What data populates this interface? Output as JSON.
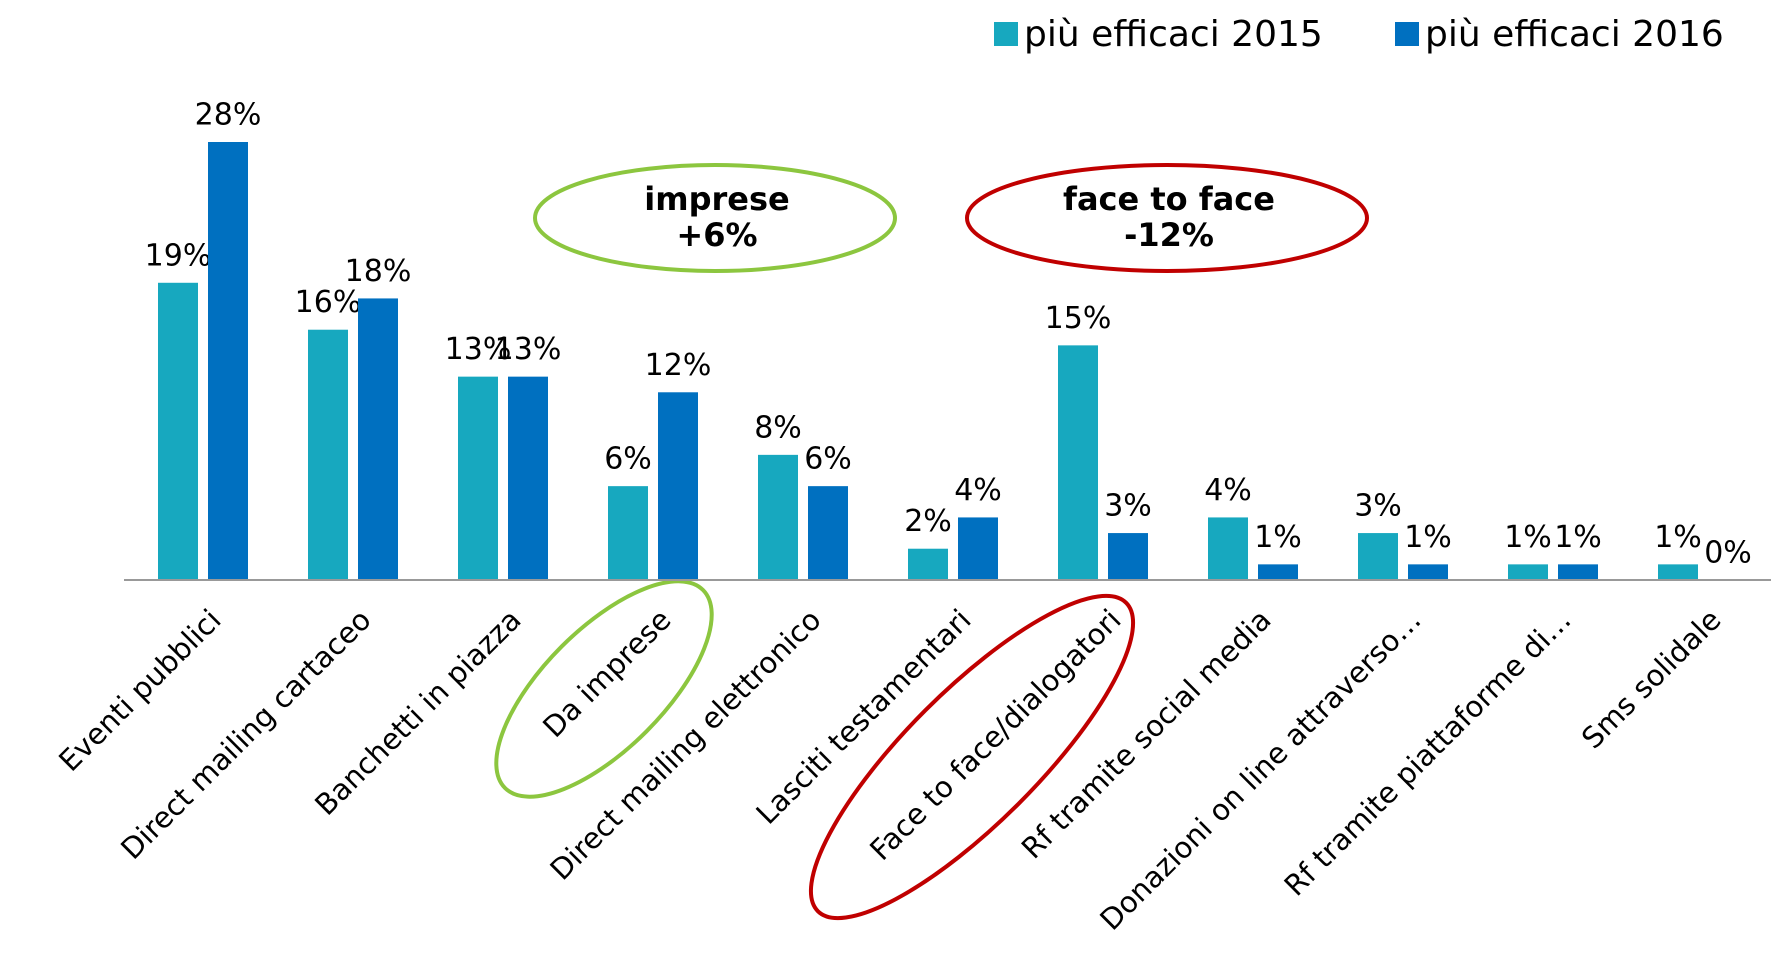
{
  "chart_data": {
    "type": "bar",
    "categories": [
      "Eventi pubblici",
      "Direct mailing cartaceo",
      "Banchetti in piazza",
      "Da imprese",
      "Direct mailing elettronico",
      "Lasciti testamentari",
      "Face to face/dialogatori",
      "Rf tramite social media",
      "Donazioni on line attraverso…",
      "Rf tramite piattaforme di…",
      "Sms solidale"
    ],
    "series": [
      {
        "name": "più efficaci 2015",
        "color": "#17a8bf",
        "values": [
          19,
          16,
          13,
          6,
          8,
          2,
          15,
          4,
          3,
          1,
          1
        ],
        "value_labels": [
          "19%",
          "16%",
          "13%",
          "6%",
          "8%",
          "2%",
          "15%",
          "4%",
          "3%",
          "1%",
          "1%"
        ]
      },
      {
        "name": "più efficaci 2016",
        "color": "#0070c0",
        "values": [
          28,
          18,
          13,
          12,
          6,
          4,
          3,
          1,
          1,
          1,
          0
        ],
        "value_labels": [
          "28%",
          "18%",
          "13%",
          "12%",
          "6%",
          "4%",
          "3%",
          "1%",
          "1%",
          "1%",
          "0%"
        ]
      }
    ],
    "annotations": [
      {
        "lines": [
          "imprese",
          "+6%"
        ],
        "color": "#8cc63f"
      },
      {
        "lines": [
          "face to face",
          "-12%"
        ],
        "color": "#c00000"
      }
    ],
    "legend": "top-right"
  }
}
